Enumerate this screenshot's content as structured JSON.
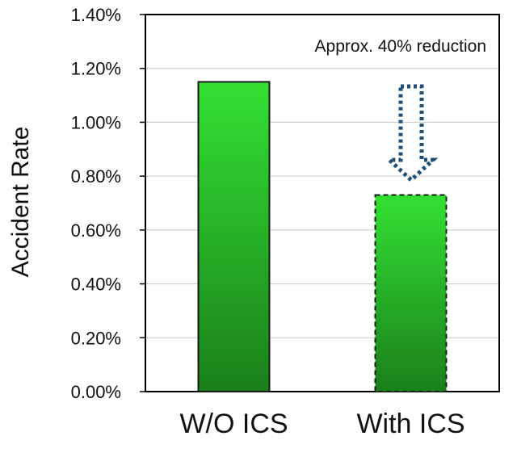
{
  "chart_data": {
    "type": "bar",
    "title": "",
    "xlabel": "",
    "ylabel": "Accident Rate",
    "categories": [
      "W/O ICS",
      "With ICS"
    ],
    "values": [
      1.15,
      0.73
    ],
    "value_unit": "%",
    "ylim": [
      0,
      1.4
    ],
    "yticks": [
      0,
      0.2,
      0.4,
      0.6,
      0.8,
      1.0,
      1.2,
      1.4
    ],
    "ytick_labels": [
      "0.00%",
      "0.20%",
      "0.40%",
      "0.60%",
      "0.80%",
      "1.00%",
      "1.20%",
      "1.40%"
    ],
    "grid": true,
    "legend": "none",
    "bar_color": "#2fbf2f",
    "bar_border_styles": [
      "solid",
      "dashed"
    ],
    "annotation": {
      "text": "Approx. 40% reduction",
      "arrow": "hollow dotted down arrow",
      "arrow_color": "#1f4e79",
      "target_category": "With ICS"
    }
  }
}
